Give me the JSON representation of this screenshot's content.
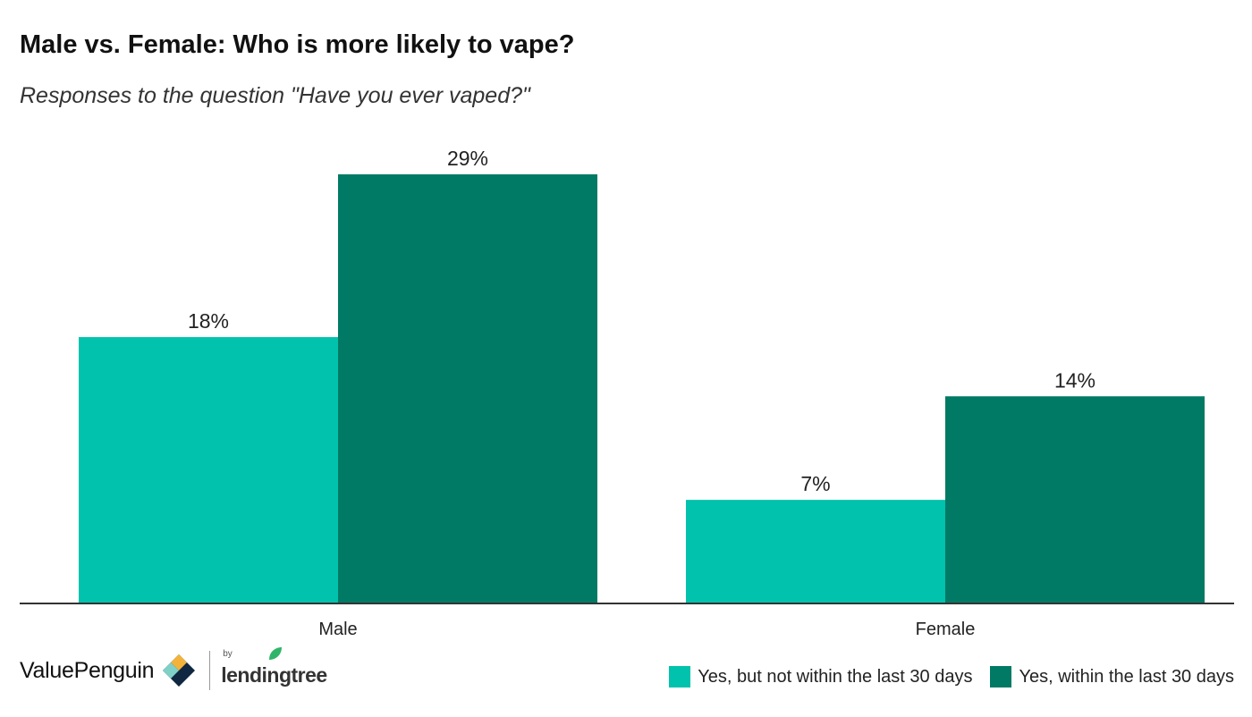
{
  "title": "Male vs. Female: Who is more likely to vape?",
  "subtitle": "Responses to the question \"Have you ever vaped?\"",
  "colors": {
    "series_light": "#00c2ad",
    "series_dark": "#007a64",
    "axis": "#333333"
  },
  "logo": {
    "brand": "ValuePenguin",
    "by": "by",
    "partner": "lendingtree"
  },
  "chart_data": {
    "type": "bar",
    "categories": [
      "Male",
      "Female"
    ],
    "series": [
      {
        "name": "Yes, but not within the last 30 days",
        "values": [
          18,
          7
        ],
        "labels": [
          "18%",
          "7%"
        ],
        "color": "#00c2ad"
      },
      {
        "name": "Yes, within the last 30 days",
        "values": [
          29,
          14
        ],
        "labels": [
          "29%",
          "14%"
        ],
        "color": "#007a64"
      }
    ],
    "title": "Male vs. Female: Who is more likely to vape?",
    "subtitle": "Responses to the question \"Have you ever vaped?\"",
    "xlabel": "",
    "ylabel": "",
    "ylim": [
      0,
      30
    ],
    "grid": false,
    "legend_position": "bottom-right"
  }
}
